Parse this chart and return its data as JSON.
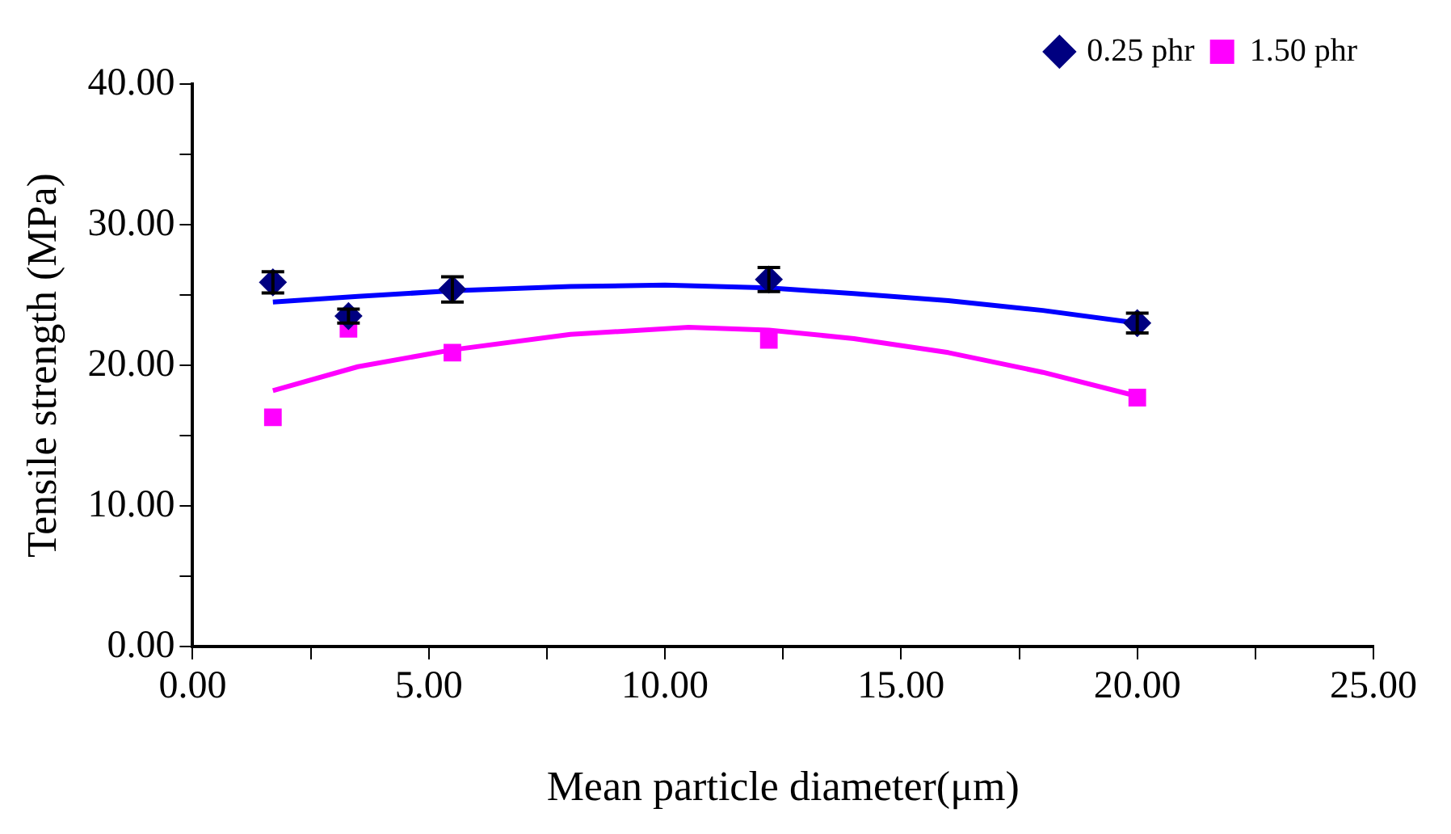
{
  "chart_data": {
    "type": "scatter",
    "xlabel": "Mean particle diameter(μm)",
    "ylabel": "Tensile strength (MPa)",
    "xlim": [
      0,
      25
    ],
    "xticks": [
      {
        "value": 0,
        "label": "0.00"
      },
      {
        "value": 5,
        "label": "5.00"
      },
      {
        "value": 10,
        "label": "10.00"
      },
      {
        "value": 15,
        "label": "15.00"
      },
      {
        "value": 20,
        "label": "20.00"
      },
      {
        "value": 25,
        "label": "25.00"
      },
      {
        "value": 2.5,
        "label": null
      },
      {
        "value": 7.5,
        "label": null
      },
      {
        "value": 12.5,
        "label": null
      },
      {
        "value": 17.5,
        "label": null
      },
      {
        "value": 22.5,
        "label": null
      }
    ],
    "ylim": [
      0,
      40
    ],
    "yticks": [
      {
        "value": 0,
        "label": "0.00"
      },
      {
        "value": 10,
        "label": "10.00"
      },
      {
        "value": 20,
        "label": "20.00"
      },
      {
        "value": 30,
        "label": "30.00"
      },
      {
        "value": 40,
        "label": "40.00"
      },
      {
        "value": 5,
        "label": null
      },
      {
        "value": 15,
        "label": null
      },
      {
        "value": 25,
        "label": null
      },
      {
        "value": 35,
        "label": null
      }
    ],
    "grid": false,
    "legend": "top right",
    "series": [
      {
        "name": "0.25 phr",
        "color": "#000080",
        "marker": "diamond",
        "x": [
          1.7,
          3.3,
          5.5,
          12.2,
          20
        ],
        "values": [
          25.9,
          23.5,
          25.4,
          26.1,
          23.0
        ],
        "errors": [
          0.75,
          0.5,
          0.9,
          0.85,
          0.7
        ]
      },
      {
        "name": "1.50 phr",
        "color": "#ff00ff",
        "marker": "square",
        "x": [
          1.7,
          3.3,
          5.5,
          12.2,
          20
        ],
        "values": [
          16.3,
          22.6,
          20.9,
          21.8,
          17.7
        ]
      },
      {
        "type": "line",
        "color": "#0000ff",
        "marker": "none",
        "x": [
          1.7,
          3.5,
          5.5,
          8,
          10,
          12.2,
          14,
          16,
          18,
          20
        ],
        "values": [
          24.5,
          24.9,
          25.3,
          25.6,
          25.7,
          25.5,
          25.1,
          24.6,
          23.9,
          23.0
        ]
      },
      {
        "type": "line",
        "color": "#ff00ff",
        "marker": "none",
        "x": [
          1.7,
          3.5,
          5.5,
          8,
          10.5,
          12.2,
          14,
          16,
          18,
          20
        ],
        "values": [
          18.2,
          19.9,
          21.1,
          22.2,
          22.7,
          22.5,
          21.9,
          20.9,
          19.5,
          17.8
        ]
      }
    ]
  }
}
